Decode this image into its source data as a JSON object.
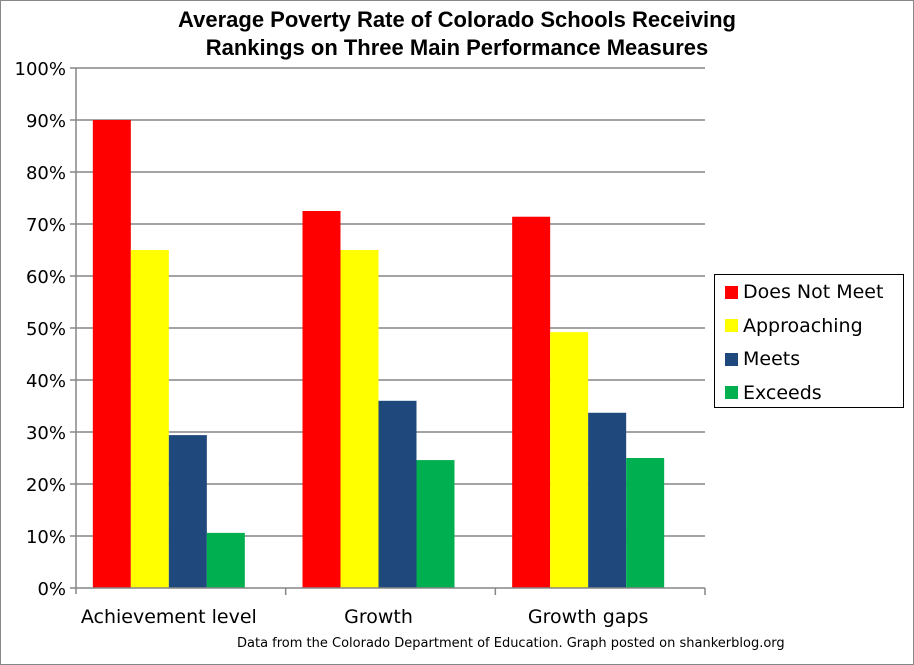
{
  "chart_data": {
    "type": "bar",
    "title_lines": [
      "Average Poverty Rate of Colorado Schools Receiving",
      "Rankings on Three Main Performance Measures"
    ],
    "xlabel": "",
    "ylabel": "",
    "ylim": [
      0,
      100
    ],
    "y_ticks": [
      "0%",
      "10%",
      "20%",
      "30%",
      "40%",
      "50%",
      "60%",
      "70%",
      "80%",
      "90%",
      "100%"
    ],
    "grid": true,
    "legend_position": "right",
    "categories": [
      "Achievement level",
      "Growth",
      "Growth gaps"
    ],
    "series": [
      {
        "name": "Does Not Meet",
        "color": "#FF0000",
        "values": [
          90.0,
          72.5,
          71.4
        ]
      },
      {
        "name": "Approaching",
        "color": "#FFFF00",
        "values": [
          65.0,
          65.0,
          49.2
        ]
      },
      {
        "name": "Meets",
        "color": "#1F497D",
        "values": [
          29.4,
          36.0,
          33.7
        ]
      },
      {
        "name": "Exceeds",
        "color": "#00B050",
        "values": [
          10.6,
          24.6,
          25.0
        ]
      }
    ],
    "source_note": "Data from  the Colorado Department of Education. Graph posted on shankerblog.org"
  }
}
